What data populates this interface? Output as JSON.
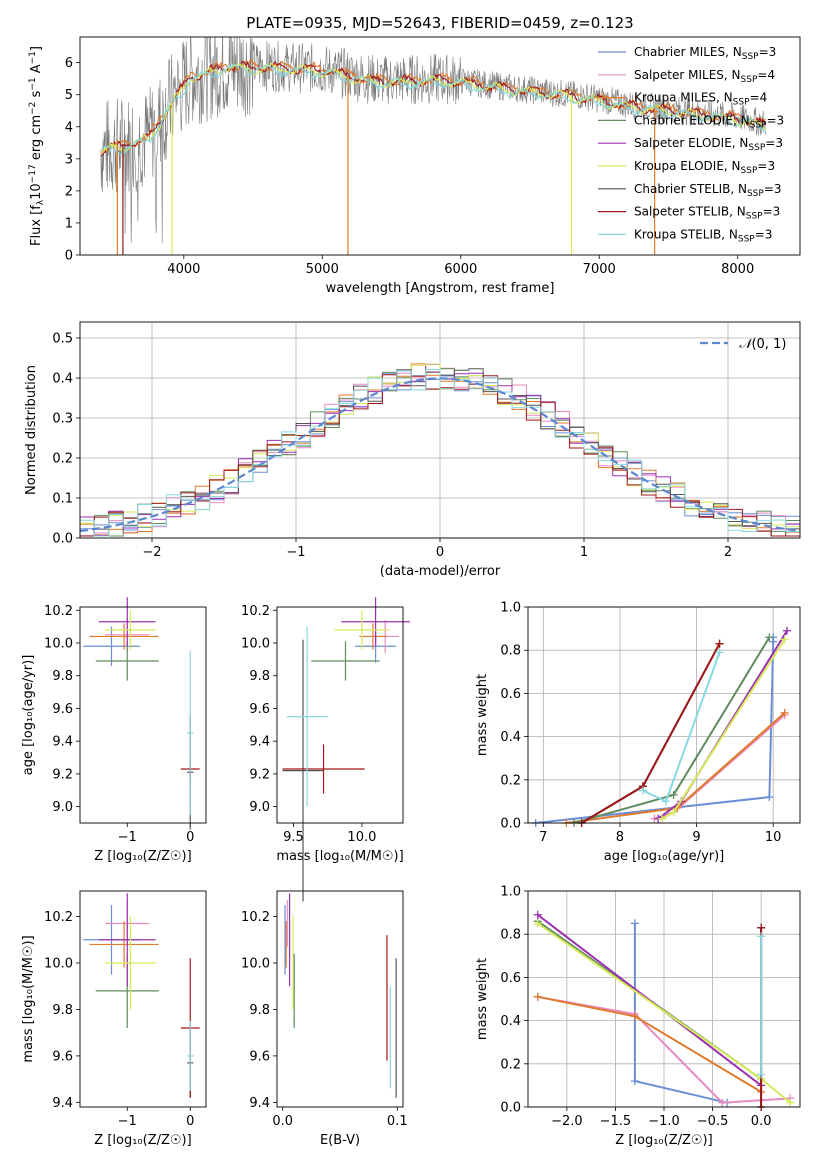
{
  "figure_title": "PLATE=0935, MJD=52643, FIBERID=0459, z=0.123",
  "colors": {
    "Chabrier MILES": "#6a8fd8",
    "Salpeter MILES": "#e88ac0",
    "Kroupa MILES": "#e07a2c",
    "Chabrier ELODIE": "#5e8c5e",
    "Salpeter ELODIE": "#9b30b0",
    "Kroupa ELODIE": "#d6ea5a",
    "Chabrier STELIB": "#555555",
    "Salpeter STELIB": "#a01818",
    "Kroupa STELIB": "#88d8e0"
  },
  "chart_data": [
    {
      "id": "spectrum",
      "type": "line",
      "xlabel": "wavelength [Angstrom, rest frame]",
      "xlim": [
        3250,
        8450
      ],
      "ylim": [
        0,
        6.8
      ],
      "xticks": [
        4000,
        5000,
        6000,
        7000,
        8000
      ],
      "yticks": [
        0,
        1,
        2,
        3,
        4,
        5,
        6
      ],
      "grid": false,
      "legend_position": "upper right",
      "legend": [
        {
          "model": "Chabrier MILES",
          "nssp": "3"
        },
        {
          "model": "Salpeter MILES",
          "nssp": "4"
        },
        {
          "model": "Kroupa MILES",
          "nssp": "4"
        },
        {
          "model": "Chabrier ELODIE",
          "nssp": "3"
        },
        {
          "model": "Salpeter ELODIE",
          "nssp": "3"
        },
        {
          "model": "Kroupa ELODIE",
          "nssp": "3"
        },
        {
          "model": "Chabrier STELIB",
          "nssp": "3"
        },
        {
          "model": "Salpeter STELIB",
          "nssp": "3"
        },
        {
          "model": "Kroupa STELIB",
          "nssp": "3"
        }
      ],
      "continuum": {
        "x": [
          3400,
          3600,
          3750,
          3900,
          4050,
          4300,
          4600,
          5000,
          5400,
          5900,
          6300,
          6600,
          6900,
          7200,
          7500,
          7800,
          8000,
          8200
        ],
        "y": [
          3.3,
          3.5,
          3.7,
          4.7,
          5.6,
          5.9,
          5.9,
          5.8,
          5.45,
          5.5,
          5.25,
          5.1,
          4.95,
          4.7,
          4.55,
          4.4,
          4.3,
          4.1
        ]
      }
    },
    {
      "id": "residuals",
      "type": "line",
      "xlabel": "(data-model)/error",
      "ylabel": "Normed distribution",
      "xlim": [
        -2.5,
        2.5
      ],
      "ylim": [
        0,
        0.54
      ],
      "xticks": [
        -2,
        -1,
        0,
        1,
        2
      ],
      "yticks": [
        0,
        0.1,
        0.2,
        0.3,
        0.4,
        0.5
      ],
      "grid": true,
      "legend_position": "upper right",
      "reference_curve": "normal(0,1)",
      "bin_width": 0.1
    },
    {
      "id": "age_vs_Z",
      "type": "scatter",
      "xlabel": "Z [log₁₀(Z/Z☉)]",
      "ylabel": "age  [log₁₀(age/yr)]",
      "xlim": [
        -1.75,
        0.25
      ],
      "ylim": [
        8.9,
        10.22
      ],
      "xticks": [
        -1,
        0
      ],
      "yticks": [
        9.0,
        9.2,
        9.4,
        9.6,
        9.8,
        10.0,
        10.2
      ],
      "grid": false,
      "points": [
        {
          "model": "Chabrier MILES",
          "x": -1.25,
          "xerr": 0.45,
          "y": 9.98,
          "yerr": 0.12
        },
        {
          "model": "Salpeter MILES",
          "x": -1.0,
          "xerr": 0.35,
          "y": 10.05,
          "yerr": 0.1
        },
        {
          "model": "Kroupa MILES",
          "x": -1.05,
          "xerr": 0.55,
          "y": 10.04,
          "yerr": 0.08
        },
        {
          "model": "Chabrier ELODIE",
          "x": -1.0,
          "xerr": 0.5,
          "y": 9.89,
          "yerr": 0.12
        },
        {
          "model": "Salpeter ELODIE",
          "x": -1.0,
          "xerr": 0.45,
          "y": 10.13,
          "yerr": 0.15
        },
        {
          "model": "Kroupa ELODIE",
          "x": -0.95,
          "xerr": 0.4,
          "y": 10.08,
          "yerr": 0.12
        },
        {
          "model": "Chabrier STELIB",
          "x": 0.0,
          "xerr": 0.05,
          "y": 9.21,
          "yerr": 0.35
        },
        {
          "model": "Salpeter STELIB",
          "x": 0.0,
          "xerr": 0.15,
          "y": 9.23,
          "yerr": 0.08
        },
        {
          "model": "Kroupa STELIB",
          "x": 0.0,
          "xerr": 0.05,
          "y": 9.45,
          "yerr": 0.5
        }
      ]
    },
    {
      "id": "age_vs_mass",
      "type": "scatter",
      "xlabel": "mass [log₁₀(M/M☉)]",
      "xlim": [
        9.38,
        10.3
      ],
      "ylim": [
        8.9,
        10.22
      ],
      "xticks": [
        9.5,
        10.0
      ],
      "yticks": [
        9.0,
        9.2,
        9.4,
        9.6,
        9.8,
        10.0,
        10.2
      ],
      "grid": false,
      "points": [
        {
          "model": "Chabrier MILES",
          "x": 10.1,
          "xerr": 0.15,
          "y": 9.98,
          "yerr": 0.1
        },
        {
          "model": "Salpeter MILES",
          "x": 10.17,
          "xerr": 0.1,
          "y": 10.04,
          "yerr": 0.1
        },
        {
          "model": "Kroupa MILES",
          "x": 10.08,
          "xerr": 0.1,
          "y": 10.04,
          "yerr": 0.08
        },
        {
          "model": "Chabrier ELODIE",
          "x": 9.88,
          "xerr": 0.25,
          "y": 9.89,
          "yerr": 0.12
        },
        {
          "model": "Salpeter ELODIE",
          "x": 10.1,
          "xerr": 0.25,
          "y": 10.13,
          "yerr": 0.15
        },
        {
          "model": "Kroupa ELODIE",
          "x": 10.0,
          "xerr": 0.2,
          "y": 10.08,
          "yerr": 0.12
        },
        {
          "model": "Chabrier STELIB",
          "x": 9.57,
          "xerr": 0.15,
          "y": 9.22,
          "yerr": 0.8
        },
        {
          "model": "Salpeter STELIB",
          "x": 9.72,
          "xerr": 0.3,
          "y": 9.23,
          "yerr": 0.15
        },
        {
          "model": "Kroupa STELIB",
          "x": 9.6,
          "xerr": 0.15,
          "y": 9.55,
          "yerr": 0.55
        }
      ]
    },
    {
      "id": "mass_weight_vs_age",
      "type": "line",
      "xlabel": "age  [log₁₀(age/yr)]",
      "ylabel": "mass weight",
      "xlim": [
        6.8,
        10.35
      ],
      "ylim": [
        0,
        1.0
      ],
      "xticks": [
        7,
        8,
        9,
        10
      ],
      "yticks": [
        0.0,
        0.2,
        0.4,
        0.6,
        0.8,
        1.0
      ],
      "grid": true,
      "series": [
        {
          "model": "Chabrier MILES",
          "x": [
            6.9,
            9.95,
            10.0,
            10.0
          ],
          "y": [
            0.0,
            0.12,
            0.84,
            0.86
          ]
        },
        {
          "model": "Salpeter MILES",
          "x": [
            8.45,
            8.7,
            10.15
          ],
          "y": [
            0.02,
            0.05,
            0.5
          ]
        },
        {
          "model": "Kroupa MILES",
          "x": [
            7.3,
            8.75,
            10.15
          ],
          "y": [
            0.0,
            0.07,
            0.51
          ]
        },
        {
          "model": "Chabrier ELODIE",
          "x": [
            7.4,
            8.7,
            9.95
          ],
          "y": [
            0.0,
            0.13,
            0.86
          ]
        },
        {
          "model": "Salpeter ELODIE",
          "x": [
            8.5,
            8.8,
            10.18
          ],
          "y": [
            0.02,
            0.1,
            0.89
          ]
        },
        {
          "model": "Kroupa ELODIE",
          "x": [
            8.55,
            8.7,
            10.15
          ],
          "y": [
            0.02,
            0.05,
            0.85
          ]
        },
        {
          "model": "Chabrier STELIB",
          "x": [
            7.5,
            8.3,
            9.3
          ],
          "y": [
            0.0,
            0.17,
            0.83
          ]
        },
        {
          "model": "Salpeter STELIB",
          "x": [
            7.5,
            8.3,
            9.3
          ],
          "y": [
            0.0,
            0.17,
            0.83
          ]
        },
        {
          "model": "Kroupa STELIB",
          "x": [
            8.3,
            8.6,
            9.3
          ],
          "y": [
            0.15,
            0.1,
            0.79
          ]
        }
      ]
    },
    {
      "id": "mass_vs_Z",
      "type": "scatter",
      "xlabel": "Z [log₁₀(Z/Z☉)]",
      "ylabel": "mass [log₁₀(M/M☉)]",
      "xlim": [
        -1.75,
        0.25
      ],
      "ylim": [
        9.38,
        10.31
      ],
      "xticks": [
        -1,
        0
      ],
      "yticks": [
        9.4,
        9.6,
        9.8,
        10.0,
        10.2
      ],
      "grid": false,
      "points": [
        {
          "model": "Chabrier MILES",
          "x": -1.25,
          "xerr": 0.45,
          "y": 10.1,
          "yerr": 0.15
        },
        {
          "model": "Salpeter MILES",
          "x": -1.0,
          "xerr": 0.35,
          "y": 10.17,
          "yerr": 0.1
        },
        {
          "model": "Kroupa MILES",
          "x": -1.05,
          "xerr": 0.55,
          "y": 10.08,
          "yerr": 0.1
        },
        {
          "model": "Chabrier ELODIE",
          "x": -1.0,
          "xerr": 0.5,
          "y": 9.88,
          "yerr": 0.16
        },
        {
          "model": "Salpeter ELODIE",
          "x": -1.0,
          "xerr": 0.45,
          "y": 10.1,
          "yerr": 0.2
        },
        {
          "model": "Kroupa ELODIE",
          "x": -0.95,
          "xerr": 0.4,
          "y": 10.0,
          "yerr": 0.2
        },
        {
          "model": "Chabrier STELIB",
          "x": 0.0,
          "xerr": 0.05,
          "y": 9.57,
          "yerr": 0.15
        },
        {
          "model": "Salpeter STELIB",
          "x": 0.0,
          "xerr": 0.15,
          "y": 9.72,
          "yerr": 0.3
        },
        {
          "model": "Kroupa STELIB",
          "x": 0.0,
          "xerr": 0.05,
          "y": 9.6,
          "yerr": 0.15
        }
      ]
    },
    {
      "id": "mass_vs_ebv",
      "type": "scatter",
      "xlabel": "E(B-V)",
      "xlim": [
        -0.005,
        0.105
      ],
      "ylim": [
        9.38,
        10.31
      ],
      "xticks": [
        0.0,
        0.1
      ],
      "yticks": [
        9.4,
        9.6,
        9.8,
        10.0,
        10.2
      ],
      "grid": false,
      "points": [
        {
          "model": "Chabrier MILES",
          "x": 0.002,
          "y": 10.1,
          "yerr": 0.15
        },
        {
          "model": "Salpeter MILES",
          "x": 0.004,
          "y": 10.17,
          "yerr": 0.1
        },
        {
          "model": "Kroupa MILES",
          "x": 0.003,
          "y": 10.08,
          "yerr": 0.1
        },
        {
          "model": "Chabrier ELODIE",
          "x": 0.01,
          "y": 9.88,
          "yerr": 0.16
        },
        {
          "model": "Salpeter ELODIE",
          "x": 0.006,
          "y": 10.1,
          "yerr": 0.2
        },
        {
          "model": "Kroupa ELODIE",
          "x": 0.009,
          "y": 10.0,
          "yerr": 0.2
        },
        {
          "model": "Chabrier STELIB",
          "x": 0.099,
          "y": 9.72,
          "yerr": 0.3
        },
        {
          "model": "Salpeter STELIB",
          "x": 0.091,
          "y": 9.85,
          "yerr": 0.27
        },
        {
          "model": "Kroupa STELIB",
          "x": 0.094,
          "y": 9.68,
          "yerr": 0.22
        }
      ]
    },
    {
      "id": "mass_weight_vs_Z",
      "type": "line",
      "xlabel": "Z [log₁₀(Z/Z☉)]",
      "ylabel": "mass weight",
      "xlim": [
        -2.4,
        0.4
      ],
      "ylim": [
        0,
        1.0
      ],
      "xticks": [
        -2.0,
        -1.5,
        -1.0,
        -0.5,
        0.0
      ],
      "yticks": [
        0.0,
        0.2,
        0.4,
        0.6,
        0.8,
        1.0
      ],
      "grid": true,
      "series": [
        {
          "model": "Chabrier MILES",
          "x": [
            -1.3,
            -1.3,
            -0.35
          ],
          "y": [
            0.85,
            0.12,
            0.02
          ]
        },
        {
          "model": "Salpeter MILES",
          "x": [
            -2.3,
            -1.3,
            -0.4,
            0.3
          ],
          "y": [
            0.51,
            0.43,
            0.02,
            0.04
          ]
        },
        {
          "model": "Kroupa MILES",
          "x": [
            -2.3,
            -1.3,
            0.0
          ],
          "y": [
            0.51,
            0.42,
            0.07
          ]
        },
        {
          "model": "Chabrier ELODIE",
          "x": [
            -2.3,
            0.0
          ],
          "y": [
            0.86,
            0.13
          ]
        },
        {
          "model": "Salpeter ELODIE",
          "x": [
            -2.3,
            0.0
          ],
          "y": [
            0.89,
            0.1
          ]
        },
        {
          "model": "Kroupa ELODIE",
          "x": [
            -2.3,
            0.0,
            0.3
          ],
          "y": [
            0.85,
            0.13,
            0.02
          ]
        },
        {
          "model": "Chabrier STELIB",
          "x": [
            0.0,
            0.0
          ],
          "y": [
            0.0,
            0.83
          ]
        },
        {
          "model": "Salpeter STELIB",
          "x": [
            0.0,
            0.0
          ],
          "y": [
            0.0,
            0.83
          ]
        },
        {
          "model": "Kroupa STELIB",
          "x": [
            0.0,
            0.0
          ],
          "y": [
            0.15,
            0.79
          ]
        }
      ]
    }
  ]
}
